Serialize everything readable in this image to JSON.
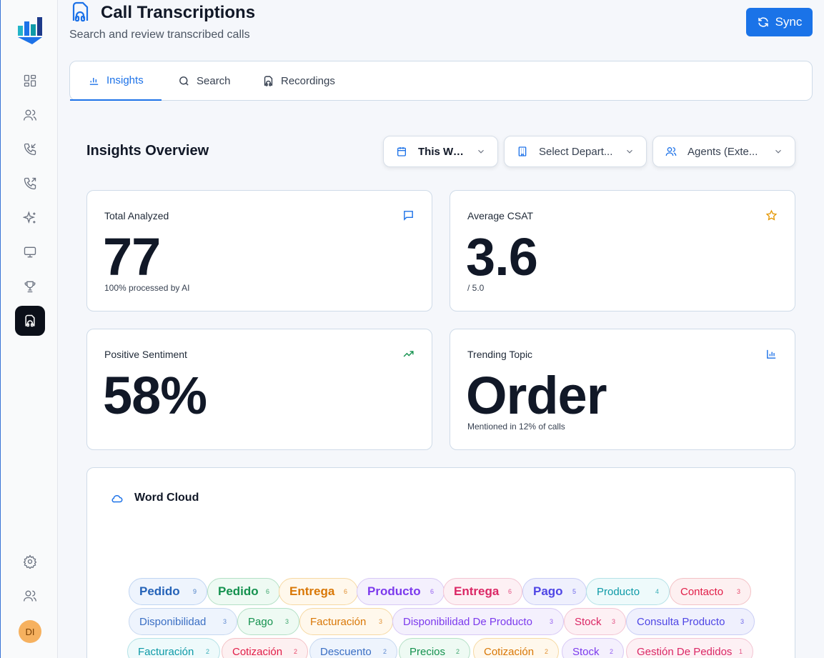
{
  "header": {
    "title": "Call Transcriptions",
    "subtitle": "Search and review transcribed calls",
    "sync_label": "Sync"
  },
  "sidebar": {
    "items": [
      {
        "icon": "dashboard-icon"
      },
      {
        "icon": "users-icon"
      },
      {
        "icon": "incoming-call-icon"
      },
      {
        "icon": "outgoing-call-icon"
      },
      {
        "icon": "sparkles-icon"
      },
      {
        "icon": "monitor-icon"
      },
      {
        "icon": "trophy-icon"
      },
      {
        "icon": "headphones-file-icon",
        "active": true
      }
    ],
    "bottom": [
      {
        "icon": "settings-icon"
      },
      {
        "icon": "team-icon"
      }
    ],
    "avatar_initials": "DI"
  },
  "tabs": [
    {
      "label": "Insights",
      "icon": "bar-chart-icon",
      "active": true
    },
    {
      "label": "Search",
      "icon": "search-icon"
    },
    {
      "label": "Recordings",
      "icon": "headphones-icon"
    }
  ],
  "insights": {
    "title": "Insights Overview",
    "filters": {
      "period": "This Week",
      "department": "Select Depart...",
      "agents": "Agents (Exte..."
    }
  },
  "stats": {
    "total": {
      "label": "Total Analyzed",
      "value": "77",
      "note": "100% processed by AI",
      "icon": "message-icon",
      "color": "#1d72e8"
    },
    "csat": {
      "label": "Average CSAT",
      "value": "3.6",
      "note": "/ 5.0",
      "icon": "star-icon",
      "color": "#e59a0b"
    },
    "sentiment": {
      "label": "Positive Sentiment",
      "value": "58%",
      "note": "",
      "icon": "trending-up-icon",
      "color": "#15924f"
    },
    "topic": {
      "label": "Trending Topic",
      "value": "Order",
      "note": "Mentioned in 12% of calls",
      "icon": "bar-chart-icon",
      "color": "#1d72e8"
    }
  },
  "wordcloud": {
    "title": "Word Cloud",
    "words": [
      {
        "word": "Pedido",
        "count": "9"
      },
      {
        "word": "Pedido",
        "count": "6"
      },
      {
        "word": "Entrega",
        "count": "6"
      },
      {
        "word": "Producto",
        "count": "6"
      },
      {
        "word": "Entrega",
        "count": "6"
      },
      {
        "word": "Pago",
        "count": "5"
      },
      {
        "word": "Producto",
        "count": "4"
      },
      {
        "word": "Contacto",
        "count": "3"
      },
      {
        "word": "Disponibilidad",
        "count": "3"
      },
      {
        "word": "Pago",
        "count": "3"
      },
      {
        "word": "Facturación",
        "count": "3"
      },
      {
        "word": "Disponibilidad De Producto",
        "count": "3"
      },
      {
        "word": "Stock",
        "count": "3"
      },
      {
        "word": "Consulta Producto",
        "count": "3"
      },
      {
        "word": "Facturación",
        "count": "2"
      },
      {
        "word": "Cotización",
        "count": "2"
      },
      {
        "word": "Descuento",
        "count": "2"
      },
      {
        "word": "Precios",
        "count": "2"
      },
      {
        "word": "Cotización",
        "count": "2"
      },
      {
        "word": "Stock",
        "count": "2"
      },
      {
        "word": "Gestión De Pedidos",
        "count": "1"
      }
    ]
  }
}
